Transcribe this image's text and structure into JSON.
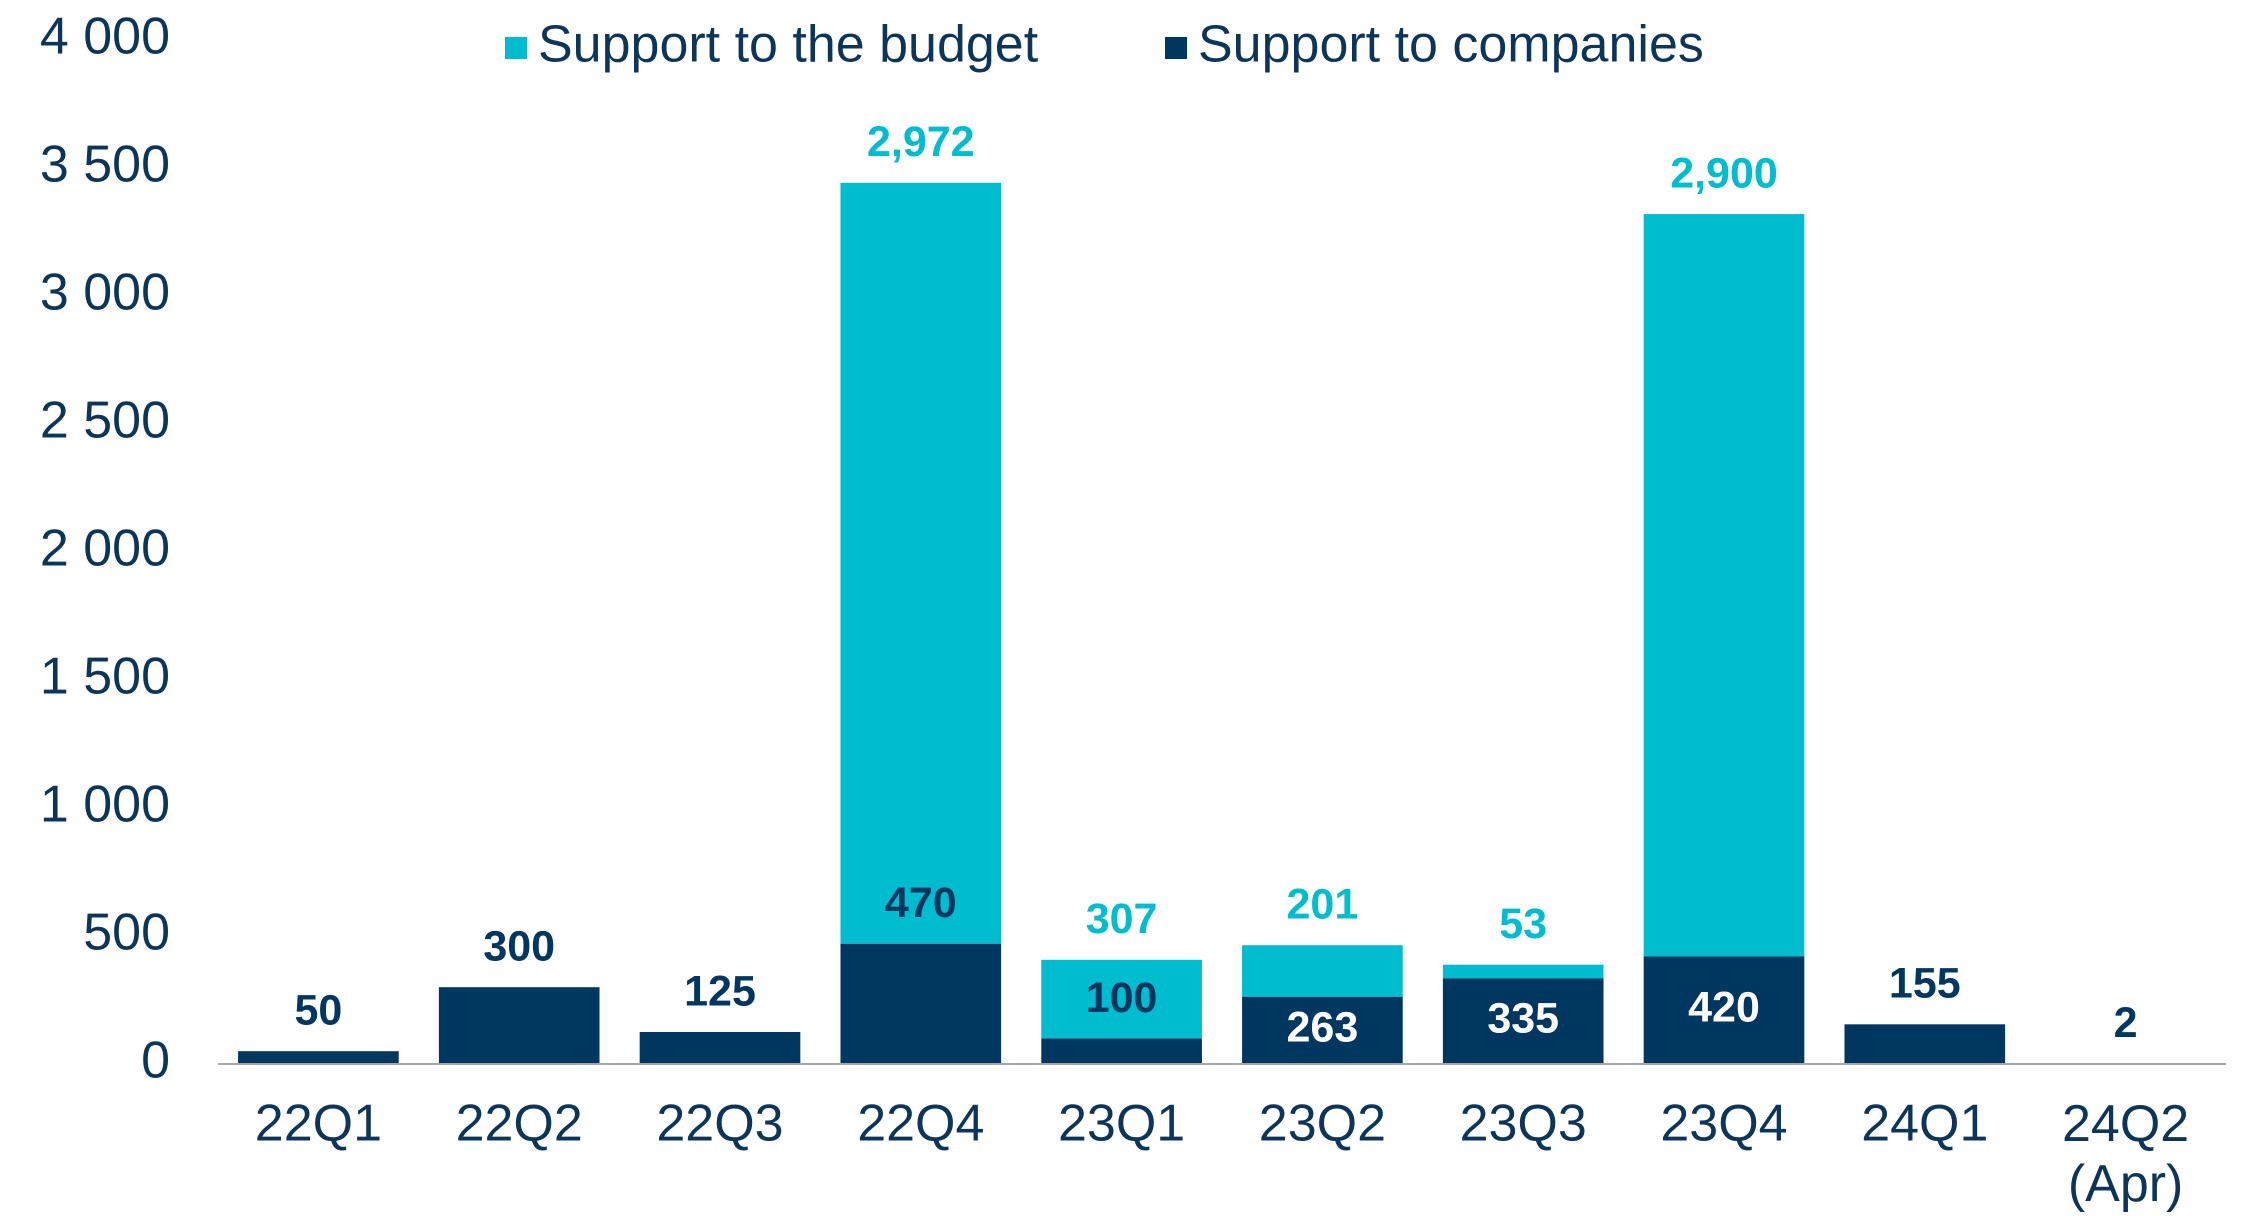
{
  "chart_data": {
    "type": "stacked-bar",
    "categories": [
      "22Q1",
      "22Q2",
      "22Q3",
      "22Q4",
      "23Q1",
      "23Q2",
      "23Q3",
      "23Q4",
      "24Q1",
      "24Q2 (Apr)"
    ],
    "series": [
      {
        "name": "Support to companies",
        "color": "#003761",
        "values": [
          50,
          300,
          125,
          470,
          100,
          263,
          335,
          420,
          155,
          2
        ]
      },
      {
        "name": "Support to the budget",
        "color": "#00bccf",
        "values": [
          null,
          null,
          null,
          2972,
          307,
          201,
          53,
          2900,
          null,
          null
        ],
        "value_labels": [
          null,
          null,
          null,
          "2,972",
          "307",
          "201",
          "53",
          "2,900",
          null,
          null
        ]
      }
    ],
    "ylim": [
      0,
      4000
    ],
    "yticks": [
      0,
      500,
      {
        "value": 1000,
        "label": "1 000"
      },
      {
        "value": 1500,
        "label": "1 500"
      },
      {
        "value": 2000,
        "label": "2 000"
      },
      {
        "value": 2500,
        "label": "2 500"
      },
      {
        "value": 3000,
        "label": "3 000"
      },
      {
        "value": 3500,
        "label": "3 500"
      },
      {
        "value": 4000,
        "label": "4 000"
      }
    ],
    "grid": false,
    "legend": "top"
  }
}
